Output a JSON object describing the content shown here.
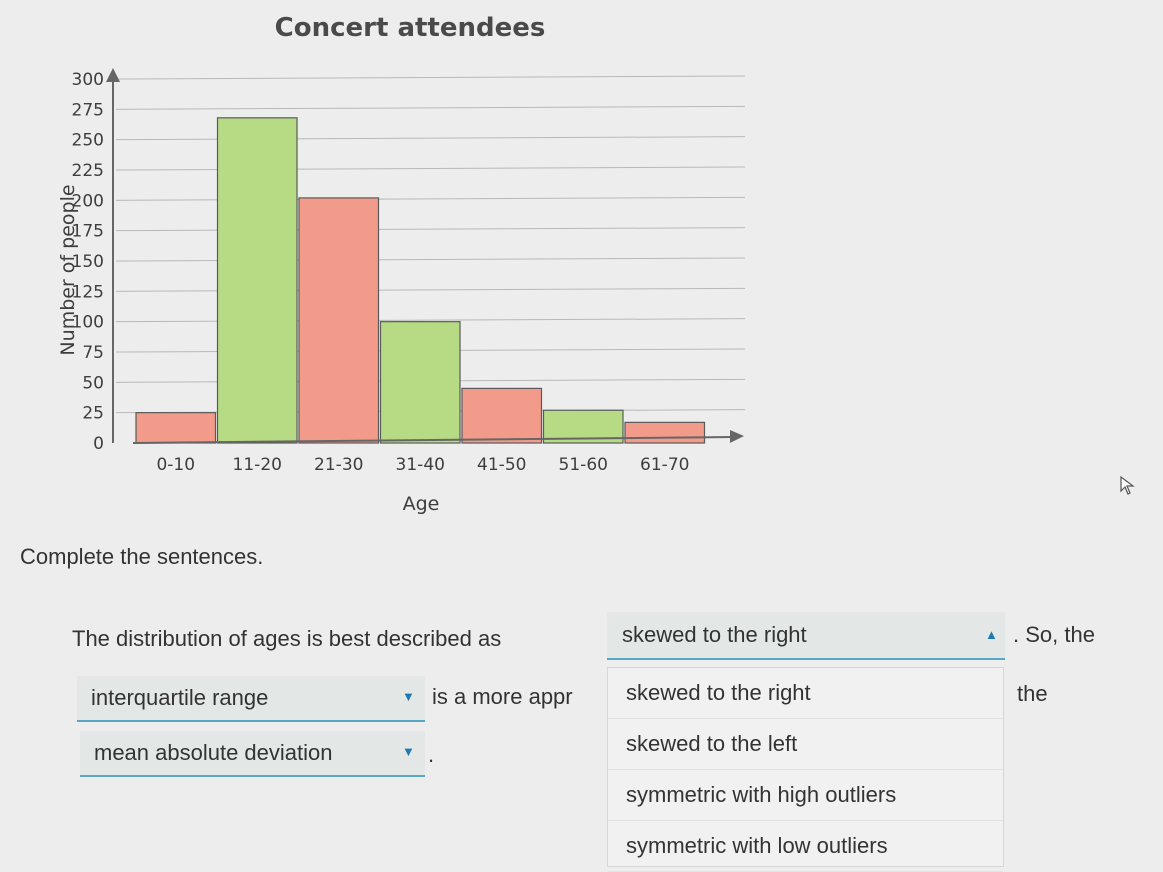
{
  "chart_data": {
    "type": "bar",
    "title": "Concert attendees",
    "xlabel": "Age",
    "ylabel": "Number of people",
    "categories": [
      "0-10",
      "11-20",
      "21-30",
      "31-40",
      "41-50",
      "51-60",
      "61-70"
    ],
    "values": [
      25,
      268,
      202,
      100,
      45,
      27,
      17
    ],
    "yticks": [
      0,
      25,
      50,
      75,
      100,
      125,
      150,
      175,
      200,
      225,
      250,
      275,
      300
    ],
    "ylim": [
      0,
      300
    ],
    "grid": true,
    "bar_colors": [
      "#f29b8b",
      "#b6db84",
      "#f29b8b",
      "#b6db84",
      "#f29b8b",
      "#b6db84",
      "#f29b8b"
    ]
  },
  "question": {
    "instruction": "Complete the sentences.",
    "sentence1_start": "The distribution of ages is best described as",
    "sentence1_end": ". So, the",
    "sentence2_mid": "is a more appr",
    "sentence2_end": "the",
    "sentence3_end": "."
  },
  "dropdowns": {
    "distribution_selected": "skewed to the right",
    "measure1_selected": "interquartile range",
    "measure2_selected": "mean absolute deviation",
    "options": [
      "skewed to the right",
      "skewed to the left",
      "symmetric with high outliers",
      "symmetric with low outliers"
    ],
    "caret_up_icon": "caret-up-icon",
    "caret_down_icon": "caret-down-icon"
  },
  "colors": {
    "accent": "#1f78b4",
    "select_background": "#e3e8e7",
    "select_underline": "#58a7c4"
  }
}
